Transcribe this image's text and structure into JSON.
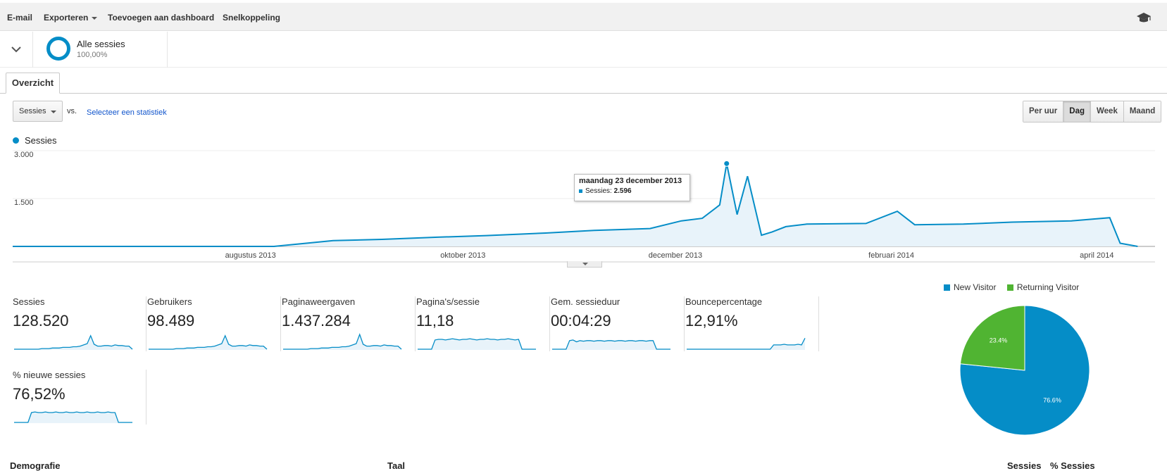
{
  "toolbar": {
    "items": [
      "E-mail",
      "Exporteren",
      "Toevoegen aan dashboard",
      "Snelkoppeling"
    ],
    "help_icon": "graduation-cap-icon"
  },
  "segment": {
    "name": "Alle sessies",
    "percent": "100,00%",
    "toggle_icon": "chevron-down-icon"
  },
  "tabs": {
    "overview": "Overzicht"
  },
  "controls": {
    "metric": "Sessies",
    "vs": "vs.",
    "select_stat": "Selecteer een statistiek",
    "ranges": [
      "Per uur",
      "Dag",
      "Week",
      "Maand"
    ],
    "active_range": "Dag"
  },
  "colors": {
    "accent": "#058dc7",
    "returning": "#50b432",
    "area_fill": "#e8f3fa"
  },
  "tooltip": {
    "title": "maandag 23 december 2013",
    "label": "Sessies:",
    "value": "2.596"
  },
  "chart_data": [
    {
      "type": "area",
      "series": [
        {
          "name": "Sessies",
          "x": [
            "2013-06-01",
            "2013-06-15",
            "2013-07-01",
            "2013-07-15",
            "2013-08-01",
            "2013-08-15",
            "2013-09-01",
            "2013-09-15",
            "2013-10-01",
            "2013-10-15",
            "2013-11-01",
            "2013-11-15",
            "2013-12-01",
            "2013-12-10",
            "2013-12-16",
            "2013-12-21",
            "2013-12-23",
            "2013-12-26",
            "2013-12-29",
            "2014-01-02",
            "2014-01-05",
            "2014-01-09",
            "2014-01-15",
            "2014-02-01",
            "2014-02-10",
            "2014-02-15",
            "2014-03-01",
            "2014-03-15",
            "2014-04-01",
            "2014-04-12",
            "2014-04-15",
            "2014-04-20"
          ],
          "values": [
            0,
            0,
            0,
            0,
            0,
            0,
            180,
            220,
            290,
            340,
            420,
            500,
            560,
            800,
            880,
            1300,
            2596,
            1000,
            2200,
            350,
            450,
            620,
            700,
            720,
            1100,
            680,
            700,
            760,
            800,
            900,
            100,
            0
          ]
        }
      ],
      "xlabels": [
        "augustus 2013",
        "oktober 2013",
        "december 2013",
        "februari 2014",
        "april 2014"
      ],
      "yticks": [
        "3.000",
        "1.500"
      ],
      "ylim": [
        0,
        3000
      ],
      "legend": "top-left"
    },
    {
      "type": "pie",
      "categories": [
        "New Visitor",
        "Returning Visitor"
      ],
      "values": [
        76.6,
        23.4
      ],
      "labels": [
        "76.6%",
        "23.4%"
      ],
      "legend": "top"
    }
  ],
  "metrics": [
    {
      "label": "Sessies",
      "value": "128.520",
      "trend": [
        0,
        0,
        0,
        0,
        0,
        0,
        0,
        0,
        1,
        1,
        1,
        2,
        2,
        2,
        3,
        3,
        3,
        4,
        4,
        5,
        7,
        9,
        22,
        8,
        5,
        5,
        6,
        6,
        5,
        7,
        6,
        6,
        5,
        5,
        0
      ]
    },
    {
      "label": "Gebruikers",
      "value": "98.489",
      "trend": [
        0,
        0,
        0,
        0,
        0,
        0,
        0,
        0,
        1,
        1,
        1,
        2,
        2,
        2,
        3,
        3,
        3,
        4,
        4,
        5,
        7,
        9,
        22,
        8,
        5,
        5,
        6,
        6,
        5,
        7,
        6,
        6,
        5,
        5,
        0
      ]
    },
    {
      "label": "Paginaweergaven",
      "value": "1.437.284",
      "trend": [
        0,
        0,
        0,
        0,
        0,
        0,
        0,
        0,
        1,
        1,
        1,
        2,
        2,
        2,
        3,
        3,
        3,
        4,
        4,
        5,
        7,
        9,
        24,
        8,
        5,
        5,
        6,
        6,
        5,
        7,
        6,
        6,
        5,
        5,
        0
      ]
    },
    {
      "label": "Pagina's/sessie",
      "value": "11,18",
      "trend": [
        0,
        0,
        0,
        0,
        0,
        15,
        16,
        16,
        15,
        16,
        17,
        16,
        15,
        16,
        16,
        17,
        16,
        15,
        16,
        16,
        17,
        16,
        16,
        15,
        16,
        16,
        17,
        16,
        15,
        16,
        0,
        0,
        0,
        0,
        0
      ]
    },
    {
      "label": "Gem. sessieduur",
      "value": "00:04:29",
      "trend": [
        0,
        0,
        0,
        0,
        0,
        14,
        15,
        12,
        14,
        13,
        14,
        14,
        13,
        14,
        14,
        13,
        14,
        14,
        13,
        14,
        14,
        13,
        14,
        14,
        13,
        14,
        14,
        13,
        14,
        14,
        0,
        0,
        0,
        0,
        0
      ]
    },
    {
      "label": "Bouncepercentage",
      "value": "12,91%",
      "trend": [
        0,
        0,
        0,
        0,
        0,
        0,
        0,
        0,
        0,
        0,
        0,
        0,
        0,
        0,
        0,
        0,
        0,
        0,
        0,
        0,
        0,
        0,
        0,
        0,
        0,
        7,
        7,
        7,
        8,
        7,
        7,
        7,
        8,
        7,
        18
      ]
    },
    {
      "label": "% nieuwe sessies",
      "value": "76,52%",
      "trend": [
        0,
        0,
        0,
        0,
        0,
        16,
        17,
        16,
        16,
        17,
        16,
        16,
        17,
        16,
        16,
        17,
        16,
        16,
        17,
        16,
        16,
        17,
        16,
        16,
        17,
        16,
        16,
        17,
        16,
        16,
        0,
        0,
        0,
        0,
        0
      ]
    }
  ],
  "bottom": {
    "left_heading": "Demografie",
    "mid_heading": "Taal",
    "col1": "Sessies",
    "col2": "% Sessies"
  }
}
